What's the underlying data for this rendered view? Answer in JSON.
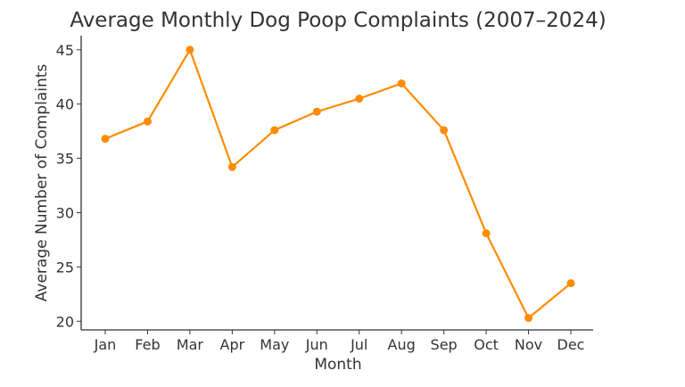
{
  "chart_data": {
    "type": "line",
    "title": "Average Monthly Dog Poop Complaints (2007–2024)",
    "xlabel": "Month",
    "ylabel": "Average Number of Complaints",
    "categories": [
      "Jan",
      "Feb",
      "Mar",
      "Apr",
      "May",
      "Jun",
      "Jul",
      "Aug",
      "Sep",
      "Oct",
      "Nov",
      "Dec"
    ],
    "values": [
      36.8,
      38.4,
      45.0,
      34.2,
      37.6,
      39.3,
      40.5,
      41.9,
      37.6,
      28.1,
      20.3,
      23.5
    ],
    "ylim": [
      19.2,
      46.3
    ],
    "yticks": [
      20,
      25,
      30,
      35,
      40,
      45
    ],
    "grid": false,
    "marker": "circle",
    "color": "#ff8c00"
  }
}
